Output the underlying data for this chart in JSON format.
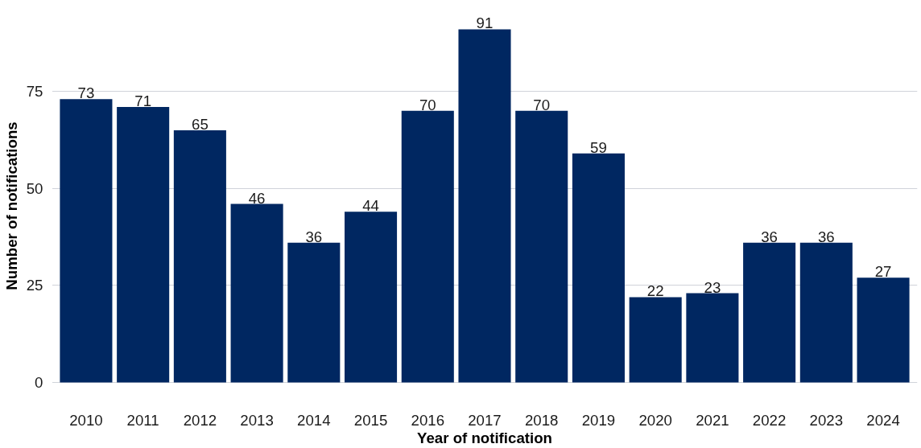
{
  "chart_data": {
    "type": "bar",
    "xlabel": "Year of notification",
    "ylabel": "Number of notifications",
    "categories": [
      "2010",
      "2011",
      "2012",
      "2013",
      "2014",
      "2015",
      "2016",
      "2017",
      "2018",
      "2019",
      "2020",
      "2021",
      "2022",
      "2023",
      "2024"
    ],
    "values": [
      73,
      71,
      65,
      46,
      36,
      44,
      70,
      91,
      70,
      59,
      22,
      23,
      36,
      36,
      27
    ],
    "color": "#002761",
    "ylim": [
      -4.55,
      95.55
    ],
    "yticks": [
      0,
      25,
      50,
      75
    ],
    "grid": "y",
    "data_labels": true
  }
}
